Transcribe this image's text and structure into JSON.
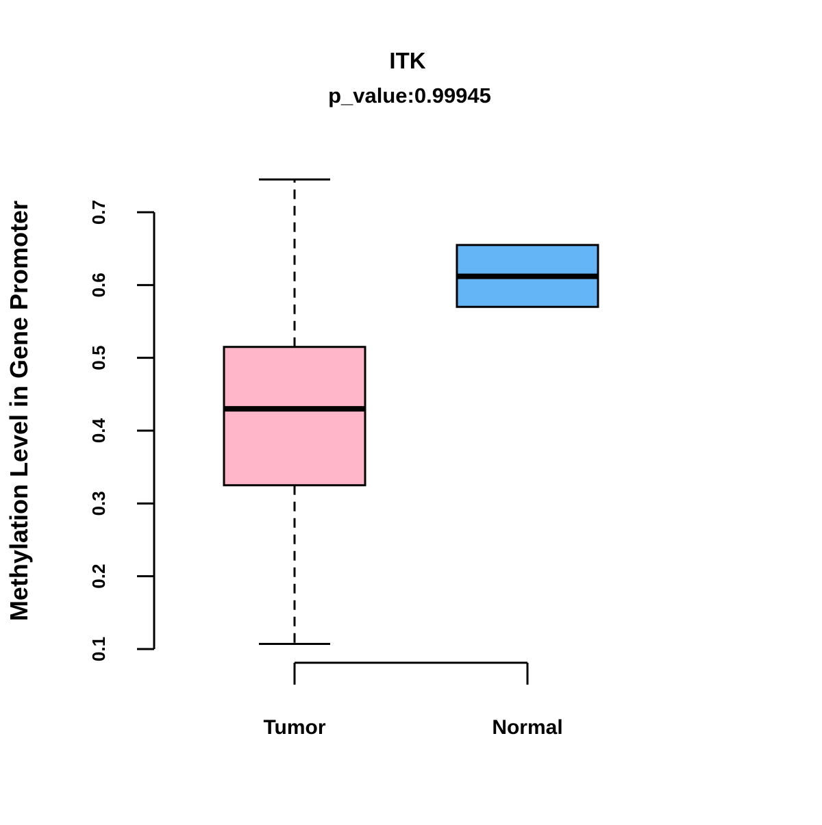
{
  "chart_data": {
    "type": "boxplot",
    "title": "ITK",
    "subtitle": "p_value:0.99945",
    "ylabel": "Methylation Level in Gene Promoter",
    "xlabel": "",
    "ylim": [
      0.1,
      0.7
    ],
    "yticks": [
      0.1,
      0.2,
      0.3,
      0.4,
      0.5,
      0.6,
      0.7
    ],
    "categories": [
      "Tumor",
      "Normal"
    ],
    "legend": "none",
    "grid": false,
    "series": [
      {
        "name": "Tumor",
        "color": "#FFB6C8",
        "whisker_low": 0.107,
        "q1": 0.325,
        "median": 0.43,
        "q3": 0.515,
        "whisker_high": 0.745
      },
      {
        "name": "Normal",
        "color": "#64B5F6",
        "whisker_low": 0.57,
        "q1": 0.57,
        "median": 0.612,
        "q3": 0.655,
        "whisker_high": 0.655
      }
    ]
  }
}
